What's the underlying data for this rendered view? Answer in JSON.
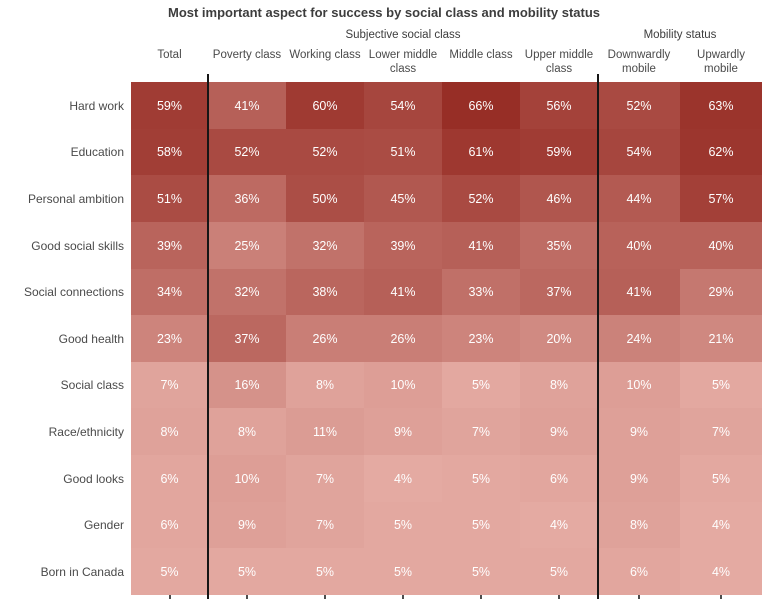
{
  "title": "Most important aspect for success by social class and mobility status",
  "group_labels": {
    "left": "Subjective social class",
    "right": "Mobility status"
  },
  "colors": {
    "separator": "#161616",
    "cell_text": "#ffffff",
    "label_text": "#4a4a4a",
    "title_text": "#3d3d3d",
    "tick_light": "rgba(255,255,255,0.8)",
    "tick_dark": "#4d4d4d"
  },
  "chart_data": {
    "type": "heatmap",
    "title": "Most important aspect for success by social class and mobility status",
    "columns": [
      "Total",
      "Poverty class",
      "Working class",
      "Lower middle class",
      "Middle class",
      "Upper middle class",
      "Downwardly mobile",
      "Upwardly mobile"
    ],
    "rows": [
      "Hard work",
      "Education",
      "Personal ambition",
      "Good social skills",
      "Social connections",
      "Good health",
      "Social class",
      "Race/ethnicity",
      "Good looks",
      "Gender",
      "Born in Canada"
    ],
    "values": [
      [
        59,
        41,
        60,
        54,
        66,
        56,
        52,
        63
      ],
      [
        58,
        52,
        52,
        51,
        61,
        59,
        54,
        62
      ],
      [
        51,
        36,
        50,
        45,
        52,
        46,
        44,
        57
      ],
      [
        39,
        25,
        32,
        39,
        41,
        35,
        40,
        40
      ],
      [
        34,
        32,
        38,
        41,
        33,
        37,
        41,
        29
      ],
      [
        23,
        37,
        26,
        26,
        23,
        20,
        24,
        21
      ],
      [
        7,
        16,
        8,
        10,
        5,
        8,
        10,
        5
      ],
      [
        8,
        8,
        11,
        9,
        7,
        9,
        9,
        7
      ],
      [
        6,
        10,
        7,
        4,
        5,
        6,
        9,
        5
      ],
      [
        6,
        9,
        7,
        5,
        5,
        4,
        8,
        4
      ],
      [
        5,
        5,
        5,
        5,
        5,
        5,
        6,
        4
      ]
    ],
    "value_suffix": "%",
    "color_scale": {
      "min_value": 0,
      "max_value": 68,
      "min_color": "#e9b2aa",
      "max_color": "#952a22"
    },
    "column_groups": [
      {
        "label": "",
        "columns": [
          "Total"
        ]
      },
      {
        "label": "Subjective social class",
        "columns": [
          "Poverty class",
          "Working class",
          "Lower middle class",
          "Middle class",
          "Upper middle class"
        ]
      },
      {
        "label": "Mobility status",
        "columns": [
          "Downwardly mobile",
          "Upwardly mobile"
        ]
      }
    ],
    "separators_after_columns": [
      0,
      5
    ],
    "legend": "none",
    "grid": "off"
  }
}
